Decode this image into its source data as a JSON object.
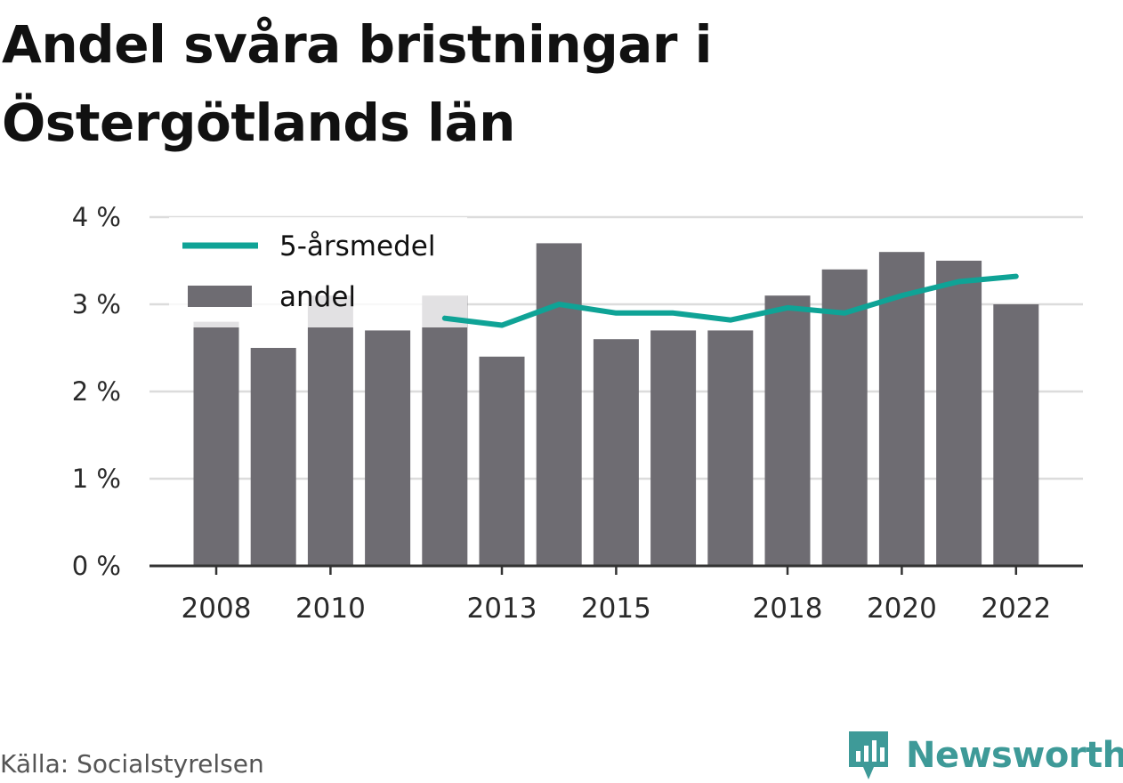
{
  "title_line1": "Andel svåra bristningar i",
  "title_line2": "Östergötlands län",
  "source": "Källa: Socialstyrelsen",
  "brand": "Newsworthy",
  "colors": {
    "bar": "#6e6c72",
    "line": "#0fa396",
    "grid": "#dcdcdc",
    "axis": "#333333",
    "brand": "#3e9a98"
  },
  "chart_data": {
    "type": "bar",
    "x": [
      2008,
      2009,
      2010,
      2011,
      2012,
      2013,
      2014,
      2015,
      2016,
      2017,
      2018,
      2019,
      2020,
      2021,
      2022
    ],
    "x_tick_labels": [
      "2008",
      "2010",
      "2013",
      "2015",
      "2018",
      "2020",
      "2022"
    ],
    "y_tick_labels": [
      "0 %",
      "1 %",
      "2 %",
      "3 %",
      "4 %"
    ],
    "ylim": [
      0,
      4
    ],
    "grid": true,
    "legend_position": "top-left",
    "series": [
      {
        "name": "andel",
        "type": "bar",
        "values": [
          2.8,
          2.5,
          3.1,
          2.7,
          3.1,
          2.4,
          3.7,
          2.6,
          2.7,
          2.7,
          3.1,
          3.4,
          3.6,
          3.5,
          3.0
        ]
      },
      {
        "name": "5-årsmedel",
        "type": "line",
        "values": [
          null,
          null,
          null,
          null,
          2.84,
          2.76,
          3.0,
          2.9,
          2.9,
          2.82,
          2.96,
          2.9,
          3.1,
          3.26,
          3.32
        ]
      }
    ]
  }
}
